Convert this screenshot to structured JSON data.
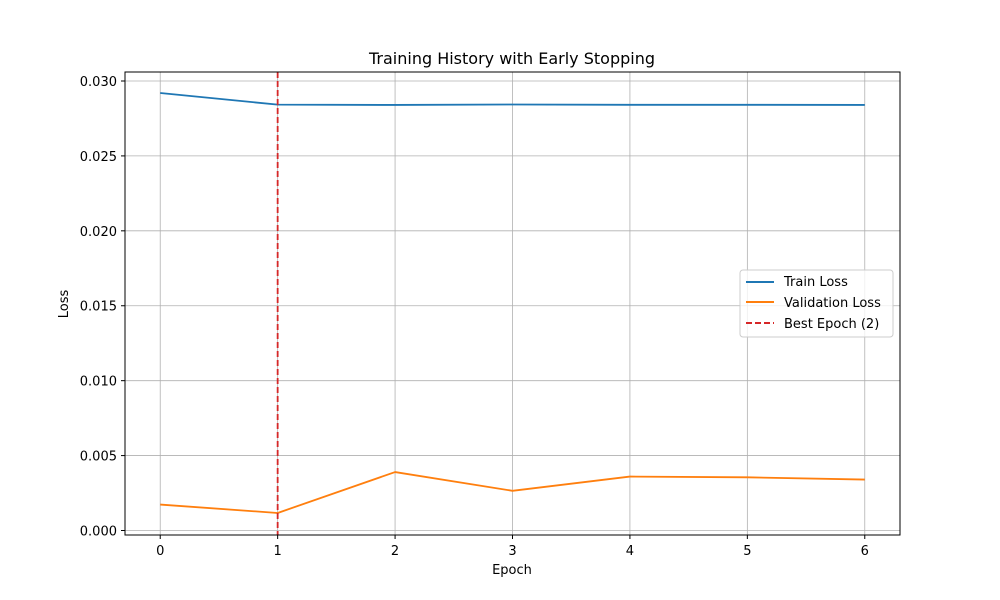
{
  "chart_data": {
    "type": "line",
    "title": "Training History with Early Stopping",
    "xlabel": "Epoch",
    "ylabel": "Loss",
    "x": [
      0,
      1,
      2,
      3,
      4,
      5,
      6
    ],
    "xlim": [
      -0.3,
      6.3
    ],
    "ylim": [
      -0.0003,
      0.0306
    ],
    "xticks": [
      0,
      1,
      2,
      3,
      4,
      5,
      6
    ],
    "yticks": [
      0.0,
      0.005,
      0.01,
      0.015,
      0.02,
      0.025,
      0.03
    ],
    "ytick_labels": [
      "0.000",
      "0.005",
      "0.010",
      "0.015",
      "0.020",
      "0.025",
      "0.030"
    ],
    "grid": true,
    "legend_position": "center-right",
    "series": [
      {
        "name": "Train Loss",
        "color": "#1f77b4",
        "style": "solid",
        "values": [
          0.0292,
          0.02842,
          0.0284,
          0.02843,
          0.02841,
          0.02841,
          0.0284
        ]
      },
      {
        "name": "Validation Loss",
        "color": "#ff7f0e",
        "style": "solid",
        "values": [
          0.00173,
          0.00117,
          0.0039,
          0.00265,
          0.0036,
          0.00355,
          0.0034
        ]
      }
    ],
    "vline": {
      "name": "Best Epoch (2)",
      "x": 1,
      "color": "#d62728",
      "style": "dashed"
    }
  }
}
